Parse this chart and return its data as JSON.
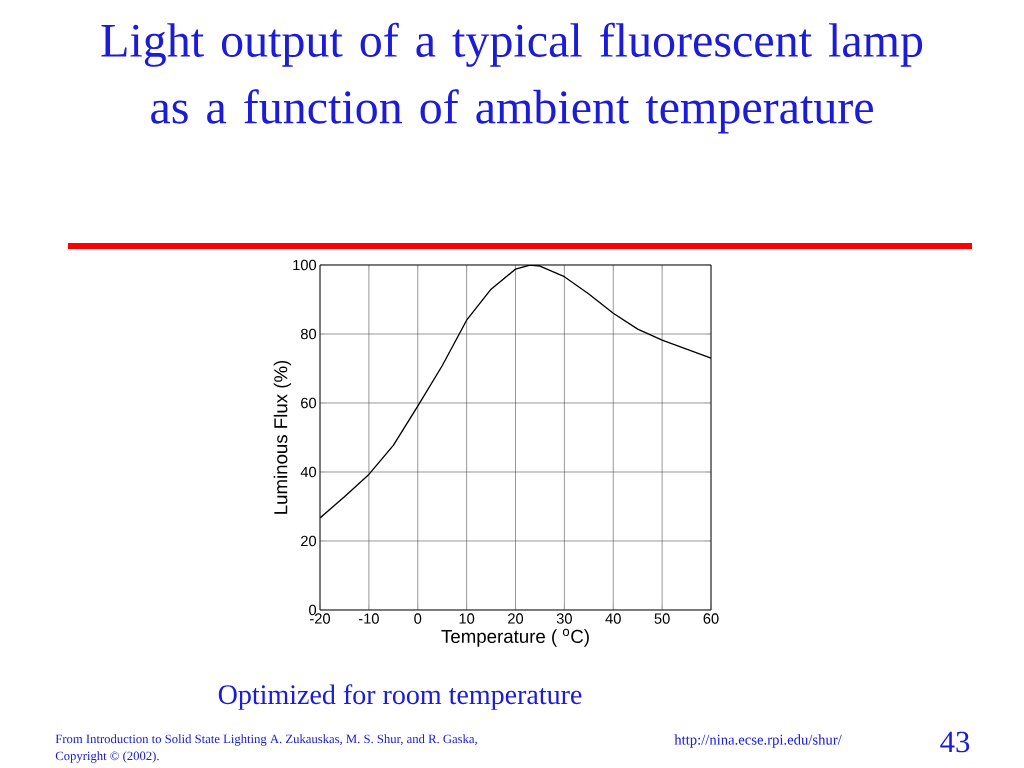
{
  "chart_data": {
    "type": "line",
    "title": "Light output of a typical fluorescent lamp as a function of ambient temperature",
    "xlabel": "Temperature ( $^{o}$C)",
    "ylabel": "Luminous Flux (%)",
    "x": [
      -20,
      -15,
      -10,
      -5,
      0,
      5,
      10,
      15,
      20,
      23,
      25,
      30,
      35,
      40,
      45,
      50,
      55,
      60
    ],
    "series": [
      {
        "color": "#000000",
        "values": [
          26.7,
          32.8,
          39.3,
          47.7,
          59.1,
          70.8,
          84.0,
          93.0,
          98.8,
          100,
          99.7,
          96.6,
          91.6,
          86.0,
          81.4,
          78.2,
          75.6,
          73.0
        ]
      }
    ],
    "xlim": [
      -20,
      60
    ],
    "ylim": [
      0,
      100
    ],
    "xticks": [
      -20,
      -10,
      0,
      10,
      20,
      30,
      40,
      50,
      60
    ],
    "yticks": [
      0,
      20,
      40,
      60,
      80,
      100
    ],
    "grid": true,
    "annotations": [
      "Optimized for room temperature",
      "From Introduction to Solid State Lighting A. Zukauskas, M. S. Shur, and R. Gaska,",
      "Copyright © (2002).",
      "http://nina.ecse.rpi.edu/shur/",
      "43"
    ]
  }
}
